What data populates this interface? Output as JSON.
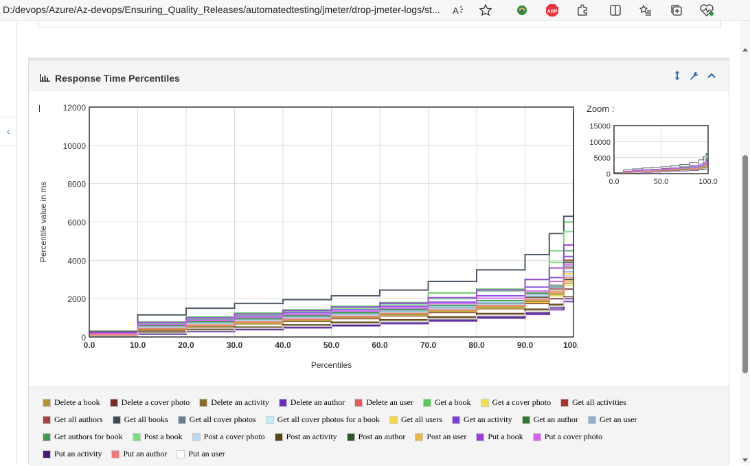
{
  "browser": {
    "address": "D:/devops/Azure/Az-devops/Ensuring_Quality_Releases/automatedtesting/jmeter/drop-jmeter-logs/st...",
    "read_aloud_label": "A̅",
    "abp_label": "ABP"
  },
  "panel": {
    "title": "Response Time Percentiles"
  },
  "zoom_label": "Zoom :",
  "colors": {
    "accent": "#2f6fb5",
    "panel_header_bg": "#f5f5f5",
    "legend_bg": "#f4f4f4"
  },
  "chart_data": {
    "type": "line",
    "title": "",
    "xlabel": "Percentiles",
    "ylabel": "Percentile value in ms",
    "xlim": [
      0,
      100
    ],
    "ylim": [
      0,
      12000
    ],
    "x_ticks": [
      "0.0",
      "10.0",
      "20.0",
      "30.0",
      "40.0",
      "50.0",
      "60.0",
      "70.0",
      "80.0",
      "90.0",
      "100.0"
    ],
    "y_ticks": [
      "0",
      "2000",
      "4000",
      "6000",
      "8000",
      "10000",
      "12000"
    ],
    "grid": true,
    "x": [
      0,
      10,
      20,
      30,
      40,
      50,
      60,
      70,
      80,
      90,
      95,
      98,
      100
    ],
    "series": [
      {
        "name": "Delete a book",
        "color": "#b8922f",
        "values": [
          100,
          420,
          600,
          760,
          900,
          1050,
          1200,
          1380,
          1550,
          1850,
          2150,
          2800,
          4800
        ]
      },
      {
        "name": "Delete a cover photo",
        "color": "#7a2b2b",
        "values": [
          80,
          350,
          520,
          680,
          820,
          960,
          1100,
          1280,
          1480,
          1750,
          2000,
          2500,
          4200
        ]
      },
      {
        "name": "Delete an activity",
        "color": "#8a6d2c",
        "values": [
          60,
          250,
          380,
          500,
          620,
          750,
          880,
          1020,
          1200,
          1420,
          1650,
          2050,
          3600
        ]
      },
      {
        "name": "Delete an author",
        "color": "#6a2fb8",
        "values": [
          20,
          150,
          280,
          380,
          480,
          580,
          700,
          830,
          980,
          1180,
          1420,
          1850,
          5000
        ]
      },
      {
        "name": "Delete an user",
        "color": "#e85a5a",
        "values": [
          120,
          400,
          580,
          740,
          900,
          1050,
          1220,
          1400,
          1600,
          1900,
          2250,
          3000,
          11700
        ]
      },
      {
        "name": "Get a book",
        "color": "#5cc85c",
        "values": [
          250,
          780,
          1050,
          1250,
          1420,
          1600,
          1800,
          2300,
          2500,
          3000,
          4500,
          6000,
          11000
        ]
      },
      {
        "name": "Get a cover photo",
        "color": "#f0e040",
        "values": [
          100,
          380,
          550,
          700,
          850,
          1000,
          1150,
          1320,
          1520,
          1800,
          2150,
          2700,
          4000
        ]
      },
      {
        "name": "Get all activities",
        "color": "#a83030",
        "values": [
          150,
          520,
          700,
          860,
          1000,
          1150,
          1320,
          1500,
          1720,
          2050,
          2500,
          4000,
          7200
        ]
      },
      {
        "name": "Get all authors",
        "color": "#a84040",
        "values": [
          140,
          500,
          690,
          850,
          990,
          1140,
          1300,
          1480,
          1700,
          2000,
          2450,
          3600,
          6400
        ]
      },
      {
        "name": "Get all books",
        "color": "#3e4a56",
        "values": [
          300,
          1150,
          1500,
          1750,
          1950,
          2150,
          2450,
          2900,
          3500,
          4300,
          5400,
          6300,
          7000
        ]
      },
      {
        "name": "Get all cover photos",
        "color": "#6b7f94",
        "values": [
          180,
          620,
          820,
          980,
          1120,
          1280,
          1450,
          1650,
          1900,
          2250,
          2700,
          3700,
          5600
        ]
      },
      {
        "name": "Get all cover photos for a book",
        "color": "#bff0f8",
        "values": [
          160,
          560,
          760,
          920,
          1060,
          1210,
          1380,
          1580,
          1820,
          2150,
          2600,
          3500,
          5300
        ]
      },
      {
        "name": "Get all users",
        "color": "#f5d84a",
        "values": [
          130,
          480,
          660,
          820,
          960,
          1110,
          1270,
          1450,
          1680,
          2000,
          2400,
          3300,
          5200
        ]
      },
      {
        "name": "Get an activity",
        "color": "#7a3fe0",
        "values": [
          200,
          700,
          920,
          1100,
          1260,
          1420,
          1600,
          1820,
          2150,
          2600,
          3100,
          4200,
          8300
        ]
      },
      {
        "name": "Get an author",
        "color": "#2f7a2f",
        "values": [
          150,
          540,
          720,
          880,
          1020,
          1170,
          1340,
          1520,
          1760,
          2100,
          2600,
          3900,
          6000
        ]
      },
      {
        "name": "Get an user",
        "color": "#8fb0d0",
        "values": [
          150,
          540,
          730,
          890,
          1030,
          1180,
          1350,
          1540,
          1780,
          2120,
          2580,
          3400,
          5500
        ]
      },
      {
        "name": "Get authors for book",
        "color": "#3f9a4a",
        "values": [
          170,
          600,
          800,
          960,
          1100,
          1260,
          1430,
          1640,
          1900,
          2300,
          2900,
          4500,
          7000
        ]
      },
      {
        "name": "Post a book",
        "color": "#7ae07a",
        "values": [
          200,
          720,
          950,
          1150,
          1320,
          1500,
          1700,
          2000,
          2400,
          3000,
          3900,
          5500,
          7200
        ]
      },
      {
        "name": "Post a cover photo",
        "color": "#b8d8f0",
        "values": [
          140,
          500,
          690,
          850,
          990,
          1140,
          1300,
          1480,
          1700,
          2000,
          2450,
          3200,
          4600
        ]
      },
      {
        "name": "Post an activity",
        "color": "#5a4416",
        "values": [
          60,
          260,
          400,
          520,
          640,
          770,
          900,
          1050,
          1230,
          1450,
          1700,
          2100,
          3500
        ]
      },
      {
        "name": "Post an author",
        "color": "#2a5a2a",
        "values": [
          100,
          400,
          580,
          740,
          880,
          1030,
          1190,
          1370,
          1580,
          1880,
          2250,
          3000,
          6000
        ]
      },
      {
        "name": "Post an user",
        "color": "#e8b84a",
        "values": [
          110,
          420,
          600,
          760,
          900,
          1050,
          1210,
          1390,
          1600,
          1900,
          2280,
          2900,
          4500
        ]
      },
      {
        "name": "Put a book",
        "color": "#9a3ae0",
        "values": [
          220,
          760,
          1000,
          1200,
          1380,
          1560,
          1760,
          2050,
          2450,
          3000,
          3600,
          4800,
          8000
        ]
      },
      {
        "name": "Put a cover photo",
        "color": "#d860f0",
        "values": [
          180,
          640,
          860,
          1030,
          1180,
          1340,
          1520,
          1740,
          2020,
          2400,
          2900,
          3800,
          6000
        ]
      },
      {
        "name": "Put an activity",
        "color": "#4a1a7a",
        "values": [
          30,
          160,
          290,
          400,
          510,
          620,
          740,
          880,
          1040,
          1250,
          1520,
          2000,
          4500
        ]
      },
      {
        "name": "Put an author",
        "color": "#f07a7a",
        "values": [
          120,
          440,
          620,
          780,
          920,
          1070,
          1230,
          1410,
          1630,
          1950,
          2350,
          3100,
          5400
        ]
      },
      {
        "name": "Put an user",
        "color": "#ffffff",
        "values": [
          40,
          200,
          330,
          450,
          560,
          680,
          800,
          950,
          1120,
          1330,
          1600,
          2050,
          3900
        ]
      }
    ]
  },
  "zoom_chart": {
    "x_ticks": [
      "0.0",
      "50.0",
      "100.0"
    ],
    "y_ticks": [
      "0",
      "5000",
      "10000",
      "15000"
    ],
    "ylim": [
      0,
      15000
    ]
  },
  "legend_rows": [
    [
      0,
      1,
      2,
      3,
      4,
      5,
      6,
      7
    ],
    [
      8,
      9,
      10,
      11,
      12,
      13,
      14,
      15
    ],
    [
      16,
      17,
      18,
      19,
      20,
      21,
      22,
      23
    ],
    [
      24,
      25,
      26
    ]
  ]
}
